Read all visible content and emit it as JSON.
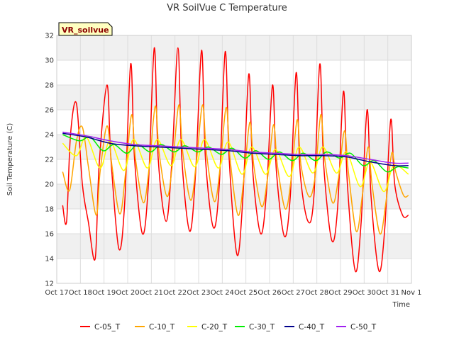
{
  "chart_data": {
    "type": "line",
    "title": "VR SoilVue C Temperature",
    "site_label": "VR_soilvue",
    "xlabel": "Time",
    "ylabel": "Soil Temperature (C)",
    "ylim": [
      12,
      32
    ],
    "yticks": [
      12,
      14,
      16,
      18,
      20,
      22,
      24,
      26,
      28,
      30,
      32
    ],
    "xlim": [
      "2023-10-17",
      "2023-11-01"
    ],
    "xtick_labels": [
      "Oct 17",
      "Oct 18",
      "Oct 19",
      "Oct 20",
      "Oct 21",
      "Oct 22",
      "Oct 23",
      "Oct 24",
      "Oct 25",
      "Oct 26",
      "Oct 27",
      "Oct 28",
      "Oct 29",
      "Oct 30",
      "Oct 31",
      "Nov 1"
    ],
    "grid": true,
    "legend_position": "bottom",
    "series": [
      {
        "name": "C-05_T",
        "color": "#ff0000",
        "x": [
          "2023-10-17 06:00",
          "2023-10-17 10:00",
          "2023-10-17 14:00",
          "2023-10-17 20:00",
          "2023-10-18 02:00",
          "2023-10-18 08:00",
          "2023-10-18 15:00",
          "2023-10-18 19:00",
          "2023-10-19 03:00",
          "2023-10-19 07:00",
          "2023-10-19 15:00",
          "2023-10-19 21:00",
          "2023-10-20 03:00",
          "2023-10-20 07:00",
          "2023-10-20 15:00",
          "2023-10-20 21:00",
          "2023-10-21 03:00",
          "2023-10-21 07:00",
          "2023-10-21 15:00",
          "2023-10-21 21:00",
          "2023-10-22 03:00",
          "2023-10-22 07:00",
          "2023-10-22 15:00",
          "2023-10-22 21:00",
          "2023-10-23 03:00",
          "2023-10-23 07:00",
          "2023-10-23 15:00",
          "2023-10-23 21:00",
          "2023-10-24 03:00",
          "2023-10-24 07:00",
          "2023-10-24 15:00",
          "2023-10-24 21:00",
          "2023-10-25 03:00",
          "2023-10-25 07:00",
          "2023-10-25 15:00",
          "2023-10-25 21:00",
          "2023-10-26 03:00",
          "2023-10-26 07:00",
          "2023-10-26 15:00",
          "2023-10-26 21:00",
          "2023-10-27 03:00",
          "2023-10-27 07:00",
          "2023-10-27 15:00",
          "2023-10-27 21:00",
          "2023-10-28 03:00",
          "2023-10-28 07:00",
          "2023-10-28 15:00",
          "2023-10-28 21:00",
          "2023-10-29 03:00",
          "2023-10-29 07:00",
          "2023-10-29 15:00",
          "2023-10-29 21:00",
          "2023-10-30 03:00",
          "2023-10-30 07:00",
          "2023-10-30 15:00",
          "2023-10-30 21:00",
          "2023-10-31 03:00",
          "2023-10-31 07:00",
          "2023-10-31 15:00",
          "2023-10-31 21:00"
        ],
        "y": [
          18.3,
          17.0,
          24.0,
          26.5,
          20.0,
          17.0,
          14.0,
          21.5,
          28.0,
          22.0,
          14.8,
          18.5,
          29.7,
          22.0,
          16.0,
          20.0,
          31.0,
          22.0,
          17.0,
          22.0,
          31.0,
          22.0,
          16.2,
          21.0,
          30.8,
          22.0,
          16.5,
          20.0,
          30.7,
          22.0,
          14.3,
          19.0,
          28.9,
          21.0,
          16.0,
          19.5,
          28.0,
          21.0,
          15.8,
          19.0,
          29.0,
          21.0,
          17.0,
          19.0,
          29.7,
          21.5,
          15.5,
          18.0,
          27.5,
          20.0,
          13.0,
          17.0,
          26.0,
          19.0,
          13.0,
          16.5,
          25.2,
          20.0,
          17.5,
          17.5
        ]
      },
      {
        "name": "C-10_T",
        "color": "#ffa500",
        "x": [
          "2023-10-17 06:00",
          "2023-10-17 13:00",
          "2023-10-17 20:00",
          "2023-10-18 02:00",
          "2023-10-18 08:00",
          "2023-10-18 16:00",
          "2023-10-18 20:00",
          "2023-10-19 03:00",
          "2023-10-19 08:00",
          "2023-10-19 16:00",
          "2023-10-19 22:00",
          "2023-10-20 04:00",
          "2023-10-20 08:00",
          "2023-10-20 16:00",
          "2023-10-20 22:00",
          "2023-10-21 04:00",
          "2023-10-21 08:00",
          "2023-10-21 16:00",
          "2023-10-21 22:00",
          "2023-10-22 04:00",
          "2023-10-22 08:00",
          "2023-10-22 16:00",
          "2023-10-22 22:00",
          "2023-10-23 04:00",
          "2023-10-23 08:00",
          "2023-10-23 16:00",
          "2023-10-23 22:00",
          "2023-10-24 04:00",
          "2023-10-24 08:00",
          "2023-10-24 16:00",
          "2023-10-24 22:00",
          "2023-10-25 04:00",
          "2023-10-25 08:00",
          "2023-10-25 16:00",
          "2023-10-25 22:00",
          "2023-10-26 04:00",
          "2023-10-26 08:00",
          "2023-10-26 16:00",
          "2023-10-26 22:00",
          "2023-10-27 04:00",
          "2023-10-27 08:00",
          "2023-10-27 16:00",
          "2023-10-27 22:00",
          "2023-10-28 04:00",
          "2023-10-28 08:00",
          "2023-10-28 16:00",
          "2023-10-28 22:00",
          "2023-10-29 04:00",
          "2023-10-29 08:00",
          "2023-10-29 16:00",
          "2023-10-29 22:00",
          "2023-10-30 04:00",
          "2023-10-30 08:00",
          "2023-10-30 16:00",
          "2023-10-30 22:00",
          "2023-10-31 04:00",
          "2023-10-31 08:00",
          "2023-10-31 16:00",
          "2023-10-31 21:00"
        ],
        "y": [
          21.0,
          19.5,
          23.5,
          24.6,
          21.5,
          17.5,
          21.0,
          24.7,
          21.5,
          17.6,
          21.0,
          25.6,
          22.0,
          18.5,
          21.5,
          26.3,
          22.5,
          19.0,
          22.0,
          26.4,
          22.5,
          18.7,
          22.0,
          26.4,
          22.5,
          18.6,
          21.5,
          26.2,
          22.0,
          17.5,
          20.5,
          25.0,
          21.5,
          18.2,
          20.5,
          24.8,
          21.5,
          18.0,
          20.5,
          25.2,
          21.5,
          19.0,
          20.5,
          25.6,
          22.0,
          18.5,
          20.5,
          24.3,
          21.0,
          16.2,
          19.0,
          23.0,
          20.0,
          16.0,
          18.5,
          22.5,
          21.0,
          19.1,
          19.1
        ]
      },
      {
        "name": "C-20_T",
        "color": "#ffff00",
        "x": [
          "2023-10-17 06:00",
          "2023-10-17 20:00",
          "2023-10-18 06:00",
          "2023-10-18 20:00",
          "2023-10-19 06:00",
          "2023-10-19 20:00",
          "2023-10-20 06:00",
          "2023-10-20 20:00",
          "2023-10-21 06:00",
          "2023-10-21 20:00",
          "2023-10-22 06:00",
          "2023-10-22 20:00",
          "2023-10-23 06:00",
          "2023-10-23 20:00",
          "2023-10-24 06:00",
          "2023-10-24 20:00",
          "2023-10-25 06:00",
          "2023-10-25 20:00",
          "2023-10-26 06:00",
          "2023-10-26 20:00",
          "2023-10-27 06:00",
          "2023-10-27 20:00",
          "2023-10-28 06:00",
          "2023-10-28 20:00",
          "2023-10-29 06:00",
          "2023-10-29 20:00",
          "2023-10-30 06:00",
          "2023-10-30 20:00",
          "2023-10-31 06:00",
          "2023-10-31 21:00"
        ],
        "y": [
          23.3,
          22.3,
          23.8,
          21.3,
          23.5,
          21.1,
          23.6,
          21.3,
          23.6,
          21.5,
          23.6,
          21.4,
          23.6,
          21.3,
          23.4,
          20.8,
          23.0,
          20.8,
          22.8,
          20.6,
          23.0,
          20.9,
          23.0,
          20.9,
          22.6,
          19.8,
          21.8,
          19.4,
          21.5,
          20.8
        ]
      },
      {
        "name": "C-30_T",
        "color": "#00ee00",
        "x": [
          "2023-10-17 06:00",
          "2023-10-17 23:00",
          "2023-10-18 10:00",
          "2023-10-18 23:00",
          "2023-10-19 10:00",
          "2023-10-19 23:00",
          "2023-10-20 10:00",
          "2023-10-20 23:00",
          "2023-10-21 10:00",
          "2023-10-21 23:00",
          "2023-10-22 10:00",
          "2023-10-22 23:00",
          "2023-10-23 10:00",
          "2023-10-23 23:00",
          "2023-10-24 10:00",
          "2023-10-24 23:00",
          "2023-10-25 10:00",
          "2023-10-25 23:00",
          "2023-10-26 10:00",
          "2023-10-26 23:00",
          "2023-10-27 10:00",
          "2023-10-27 23:00",
          "2023-10-28 10:00",
          "2023-10-28 23:00",
          "2023-10-29 10:00",
          "2023-10-29 23:00",
          "2023-10-30 10:00",
          "2023-10-30 23:00",
          "2023-10-31 10:00",
          "2023-10-31 21:00"
        ],
        "y": [
          24.0,
          23.5,
          23.8,
          22.7,
          23.2,
          22.5,
          23.2,
          22.6,
          23.2,
          22.6,
          23.1,
          22.6,
          23.0,
          22.4,
          22.9,
          22.1,
          22.7,
          22.0,
          22.6,
          21.9,
          22.5,
          21.9,
          22.6,
          22.1,
          22.5,
          21.5,
          21.9,
          21.0,
          21.4,
          21.3
        ]
      },
      {
        "name": "C-40_T",
        "color": "#00008b",
        "x": [
          "2023-10-17 06:00",
          "2023-10-18 06:00",
          "2023-10-19 06:00",
          "2023-10-20 06:00",
          "2023-10-21 06:00",
          "2023-10-22 06:00",
          "2023-10-23 06:00",
          "2023-10-24 06:00",
          "2023-10-25 06:00",
          "2023-10-26 06:00",
          "2023-10-27 06:00",
          "2023-10-28 06:00",
          "2023-10-29 06:00",
          "2023-10-30 06:00",
          "2023-10-31 06:00",
          "2023-10-31 21:00"
        ],
        "y": [
          24.1,
          23.8,
          23.3,
          23.1,
          23.0,
          22.9,
          22.8,
          22.7,
          22.5,
          22.4,
          22.3,
          22.3,
          22.2,
          21.8,
          21.5,
          21.5
        ]
      },
      {
        "name": "C-50_T",
        "color": "#a020f0",
        "x": [
          "2023-10-17 06:00",
          "2023-10-18 06:00",
          "2023-10-19 06:00",
          "2023-10-20 06:00",
          "2023-10-21 06:00",
          "2023-10-22 06:00",
          "2023-10-23 06:00",
          "2023-10-24 06:00",
          "2023-10-25 06:00",
          "2023-10-26 06:00",
          "2023-10-27 06:00",
          "2023-10-28 06:00",
          "2023-10-29 06:00",
          "2023-10-30 06:00",
          "2023-10-31 06:00",
          "2023-10-31 21:00"
        ],
        "y": [
          24.2,
          23.9,
          23.5,
          23.2,
          23.1,
          23.0,
          22.9,
          22.8,
          22.6,
          22.5,
          22.4,
          22.4,
          22.3,
          22.0,
          21.7,
          21.7
        ]
      }
    ]
  }
}
